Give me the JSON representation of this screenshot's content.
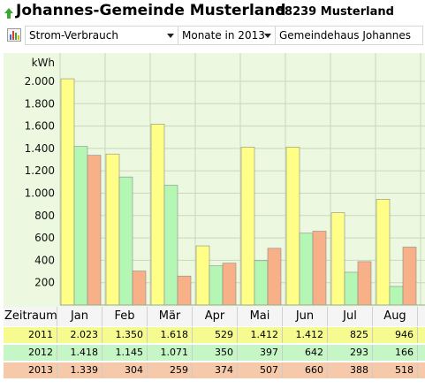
{
  "header": {
    "title": "Johannes-Gemeinde Musterland",
    "subtitle": "58239 Musterland"
  },
  "toolbar": {
    "metric": "Strom-Verbrauch",
    "period": "Monate in 2013",
    "site": "Gemeindehaus Johannes"
  },
  "colors": {
    "2011": "#ffff88",
    "2012": "#b4f7b4",
    "2013": "#f8b088",
    "plot_background": "#edf8e0"
  },
  "chart_data": {
    "type": "bar",
    "ylabel": "kWh",
    "ylim": [
      0,
      2200
    ],
    "yticks": [
      "200",
      "400",
      "600",
      "800",
      "1.000",
      "1.200",
      "1.400",
      "1.600",
      "1.800",
      "2.000"
    ],
    "grid": true,
    "categories": [
      "Jan",
      "Feb",
      "Mär",
      "Apr",
      "Mai",
      "Jun",
      "Jul",
      "Aug"
    ],
    "series": [
      {
        "name": "2011",
        "values": [
          2023,
          1350,
          1618,
          529,
          1412,
          1412,
          825,
          946
        ]
      },
      {
        "name": "2012",
        "values": [
          1418,
          1145,
          1071,
          350,
          397,
          642,
          293,
          166
        ]
      },
      {
        "name": "2013",
        "values": [
          1339,
          304,
          259,
          374,
          507,
          660,
          388,
          518
        ]
      }
    ]
  },
  "table": {
    "header_label": "Zeitraum",
    "months": [
      "Jan",
      "Feb",
      "Mär",
      "Apr",
      "Mai",
      "Jun",
      "Jul",
      "Aug"
    ],
    "rows": [
      {
        "year": "2011",
        "cells": [
          "2.023",
          "1.350",
          "1.618",
          "529",
          "1.412",
          "1.412",
          "825",
          "946"
        ]
      },
      {
        "year": "2012",
        "cells": [
          "1.418",
          "1.145",
          "1.071",
          "350",
          "397",
          "642",
          "293",
          "166"
        ]
      },
      {
        "year": "2013",
        "cells": [
          "1.339",
          "304",
          "259",
          "374",
          "507",
          "660",
          "388",
          "518"
        ]
      }
    ]
  }
}
